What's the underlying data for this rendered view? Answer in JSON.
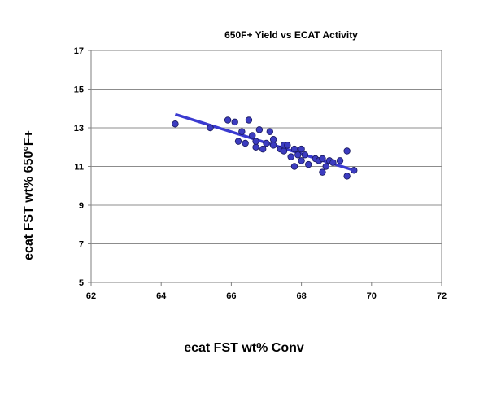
{
  "chart_data": {
    "type": "scatter",
    "title": "650F+ Yield vs ECAT Activity",
    "xlabel": "ecat FST wt% Conv",
    "ylabel": "ecat FST wt% 650°F+",
    "xlim": [
      62,
      72
    ],
    "ylim": [
      5,
      17
    ],
    "x_ticks": [
      "62",
      "64",
      "66",
      "68",
      "70",
      "72"
    ],
    "y_ticks": [
      "5",
      "7",
      "9",
      "11",
      "13",
      "15",
      "17"
    ],
    "x_tick_values": [
      62,
      64,
      66,
      68,
      70,
      72
    ],
    "y_tick_values": [
      5,
      7,
      9,
      11,
      13,
      15,
      17
    ],
    "grid": "horizontal",
    "legend": "none",
    "colors": {
      "points": "#3c3cc0",
      "trendline": "#3a3ad0",
      "grid": "#8c8c8c"
    },
    "points": [
      [
        64.4,
        13.2
      ],
      [
        65.4,
        13.0
      ],
      [
        65.9,
        13.4
      ],
      [
        66.1,
        13.3
      ],
      [
        66.2,
        12.3
      ],
      [
        66.3,
        12.8
      ],
      [
        66.4,
        12.2
      ],
      [
        66.5,
        13.4
      ],
      [
        66.6,
        12.6
      ],
      [
        66.7,
        12.0
      ],
      [
        66.7,
        12.3
      ],
      [
        66.8,
        12.9
      ],
      [
        66.9,
        11.9
      ],
      [
        67.0,
        12.2
      ],
      [
        67.1,
        12.8
      ],
      [
        67.2,
        12.4
      ],
      [
        67.2,
        12.1
      ],
      [
        67.4,
        11.9
      ],
      [
        67.5,
        11.8
      ],
      [
        67.5,
        12.1
      ],
      [
        67.6,
        12.1
      ],
      [
        67.7,
        11.5
      ],
      [
        67.8,
        11.0
      ],
      [
        67.8,
        11.9
      ],
      [
        67.9,
        11.6
      ],
      [
        68.0,
        11.3
      ],
      [
        68.0,
        11.9
      ],
      [
        68.1,
        11.6
      ],
      [
        68.2,
        11.1
      ],
      [
        68.4,
        11.4
      ],
      [
        68.5,
        11.3
      ],
      [
        68.6,
        11.4
      ],
      [
        68.6,
        10.7
      ],
      [
        68.7,
        11.0
      ],
      [
        68.8,
        11.3
      ],
      [
        68.9,
        11.2
      ],
      [
        69.1,
        11.3
      ],
      [
        69.3,
        11.8
      ],
      [
        69.3,
        10.5
      ],
      [
        69.5,
        10.8
      ]
    ],
    "trendline": {
      "x": [
        64.4,
        69.5
      ],
      "y": [
        13.7,
        10.8
      ]
    }
  }
}
